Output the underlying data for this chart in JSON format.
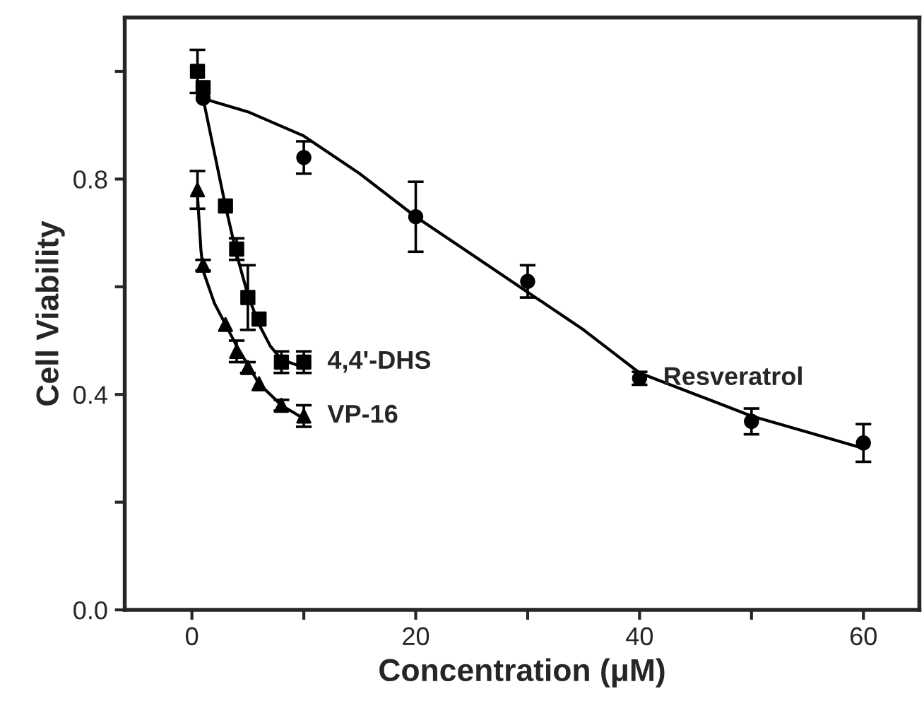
{
  "chart_data": {
    "type": "scatter",
    "xlabel": "Concentration (μM)",
    "ylabel": "Cell Viability",
    "xlim": [
      -6,
      65
    ],
    "ylim": [
      0,
      1.1
    ],
    "xticks": [
      0,
      {
        "value": 10,
        "label": null
      },
      20,
      {
        "value": 30,
        "label": null
      },
      40,
      {
        "value": 50,
        "label": null
      },
      60
    ],
    "yticks": [
      {
        "value": 0,
        "label": "0.0"
      },
      {
        "value": 0.2,
        "label": null
      },
      0.4,
      {
        "value": 0.6,
        "label": null
      },
      0.8,
      {
        "value": 1.0,
        "label": null
      }
    ],
    "grid": false,
    "legend": false,
    "series": [
      {
        "name": "Resveratrol",
        "marker": "circle",
        "color": "#000000",
        "x": [
          1,
          10,
          20,
          30,
          40,
          50,
          60
        ],
        "values": [
          0.95,
          0.84,
          0.73,
          0.61,
          0.43,
          0.35,
          0.31
        ],
        "errors": [
          null,
          0.03,
          0.065,
          0.03,
          0.012,
          0.024,
          0.035
        ]
      },
      {
        "name": "4,4'-DHS",
        "marker": "square",
        "color": "#000000",
        "x": [
          0.5,
          1,
          3,
          4,
          5,
          6,
          8,
          10
        ],
        "values": [
          1.0,
          0.97,
          0.75,
          0.67,
          0.58,
          0.54,
          0.46,
          0.46
        ],
        "errors": [
          0.04,
          null,
          null,
          0.02,
          0.06,
          null,
          0.02,
          0.02
        ]
      },
      {
        "name": "VP-16",
        "marker": "triangle",
        "color": "#000000",
        "x": [
          0.5,
          1,
          3,
          4,
          5,
          6,
          8,
          10
        ],
        "values": [
          0.78,
          0.64,
          0.53,
          0.48,
          0.45,
          0.42,
          0.38,
          0.36
        ],
        "errors": [
          0.035,
          0.01,
          null,
          0.02,
          0.01,
          null,
          0.01,
          0.02
        ]
      },
      {
        "type": "line",
        "marker": "none",
        "color": "#000000",
        "x": [
          0.9,
          5,
          10,
          15,
          20,
          25,
          30,
          35,
          40,
          45,
          50,
          55,
          60
        ],
        "values": [
          0.95,
          0.925,
          0.88,
          0.81,
          0.73,
          0.66,
          0.59,
          0.52,
          0.44,
          0.4,
          0.36,
          0.33,
          0.3
        ]
      },
      {
        "type": "line",
        "marker": "none",
        "color": "#000000",
        "x": [
          1,
          2,
          3,
          4,
          5,
          6,
          7,
          8,
          10
        ],
        "values": [
          0.95,
          0.85,
          0.75,
          0.66,
          0.585,
          0.53,
          0.49,
          0.465,
          0.45
        ]
      },
      {
        "type": "line",
        "marker": "none",
        "color": "#000000",
        "x": [
          0.5,
          0.8,
          1,
          2,
          3,
          4,
          5,
          6,
          7,
          8,
          10
        ],
        "values": [
          0.77,
          0.67,
          0.63,
          0.57,
          0.53,
          0.49,
          0.455,
          0.42,
          0.4,
          0.38,
          0.355
        ]
      }
    ]
  }
}
